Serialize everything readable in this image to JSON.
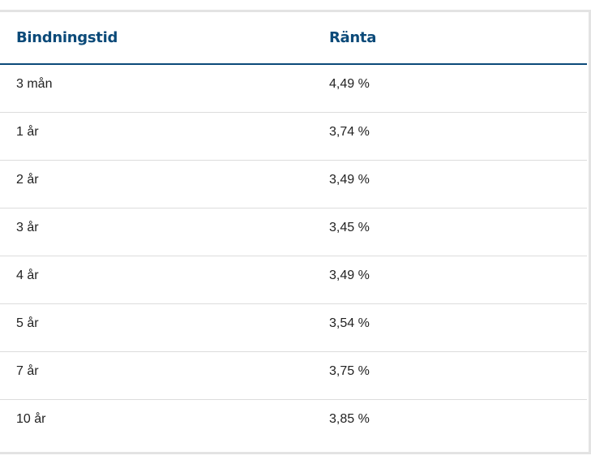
{
  "table": {
    "headers": {
      "term": "Bindningstid",
      "rate": "Ränta"
    },
    "rows": [
      {
        "term": "3 mån",
        "rate": "4,49 %"
      },
      {
        "term": "1 år",
        "rate": "3,74 %"
      },
      {
        "term": "2 år",
        "rate": "3,49 %"
      },
      {
        "term": "3 år",
        "rate": "3,45 %"
      },
      {
        "term": "4 år",
        "rate": "3,49 %"
      },
      {
        "term": "5 år",
        "rate": "3,54 %"
      },
      {
        "term": "7 år",
        "rate": "3,75 %"
      },
      {
        "term": "10 år",
        "rate": "3,85 %"
      }
    ]
  },
  "colors": {
    "header_text": "#0b4a79",
    "header_rule": "#0b4a79",
    "row_divider": "#dcdcdc",
    "body_text": "#222222"
  }
}
